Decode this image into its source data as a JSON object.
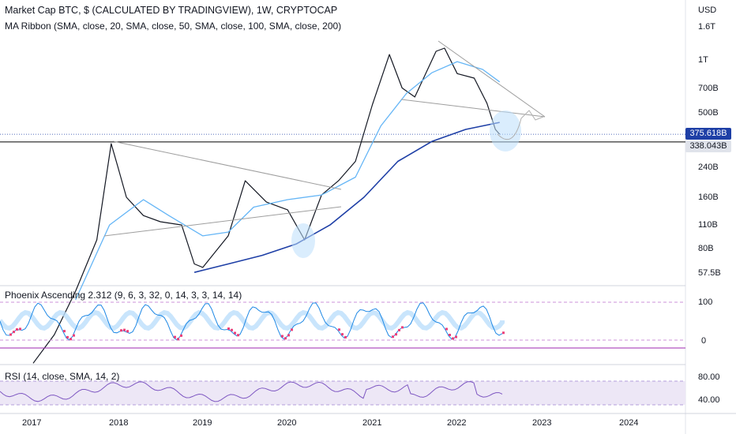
{
  "header": {
    "title": "Market Cap BTC, $ (CALCULATED BY TRADINGVIEW), 1W, CRYPTOCAP",
    "ma_ribbon": "MA Ribbon (SMA, close, 20, SMA, close, 50, SMA, close, 100, SMA, close, 200)"
  },
  "colors": {
    "up": "#26a69a",
    "down": "#000000",
    "ma_fast": "#64b5f6",
    "ma_slow": "#1e3fa6",
    "phoenix_band": "#bbdefb",
    "phoenix_line": "#1e88e5",
    "phoenix_pink": "#ec407a",
    "rsi_line": "#7e57c2",
    "rsi_band": "#ede7f6",
    "last_price_bg": "#1e3fa6",
    "level_bg": "#e0e3eb"
  },
  "chart_data": [
    {
      "type": "line",
      "title": "Market Cap BTC, $ (CALCULATED BY TRADINGVIEW), 1W, CRYPTOCAP",
      "yaxis_unit": "USD",
      "y_scale": "log",
      "y_ticks": [
        "1.6T",
        "1T",
        "700B",
        "500B",
        "240B",
        "160B",
        "110B",
        "80B",
        "57.5B"
      ],
      "x_ticks": [
        "2017",
        "2018",
        "2019",
        "2020",
        "2021",
        "2022",
        "2023",
        "2024"
      ],
      "last_price_label": "375.618B",
      "level_label": "338.043B",
      "series": [
        {
          "x": [
            2017.0,
            2017.25,
            2017.5,
            2017.75,
            2017.92,
            2018.0,
            2018.1,
            2018.3,
            2018.5,
            2018.75,
            2018.9,
            2019.0,
            2019.3,
            2019.5,
            2019.75,
            2020.0,
            2020.2,
            2020.4,
            2020.6,
            2020.8,
            2021.0,
            2021.2,
            2021.35,
            2021.5,
            2021.75,
            2021.85,
            2022.0,
            2022.2,
            2022.35,
            2022.45,
            2022.5
          ],
          "values": [
            17,
            25,
            45,
            90,
            330,
            240,
            160,
            125,
            115,
            110,
            65,
            62,
            95,
            200,
            150,
            135,
            90,
            165,
            200,
            260,
            560,
            1100,
            700,
            620,
            1150,
            1200,
            850,
            800,
            570,
            400,
            375
          ]
        },
        {
          "name": "SMA 50",
          "x": [
            2017.5,
            2017.9,
            2018.3,
            2018.6,
            2019.0,
            2019.3,
            2019.6,
            2020.0,
            2020.4,
            2020.8,
            2021.1,
            2021.4,
            2021.7,
            2022.0,
            2022.3,
            2022.5
          ],
          "values": [
            40,
            110,
            155,
            125,
            95,
            100,
            140,
            155,
            165,
            210,
            420,
            650,
            860,
            1000,
            900,
            760
          ]
        },
        {
          "name": "SMA 200",
          "x": [
            2018.9,
            2019.3,
            2019.7,
            2020.1,
            2020.5,
            2020.9,
            2021.3,
            2021.7,
            2022.1,
            2022.5
          ],
          "values": [
            58,
            65,
            73,
            85,
            110,
            160,
            260,
            340,
            400,
            440
          ]
        }
      ]
    },
    {
      "type": "line",
      "title": "Phoenix Ascending 2.312 (9, 6, 3, 32, 0, 14, 3, 3, 14, 14)",
      "y_ticks": [
        "100",
        "0"
      ]
    },
    {
      "type": "line",
      "title": "RSI (14, close, SMA, 14, 2)",
      "y_ticks": [
        "80.00",
        "40.00"
      ]
    }
  ]
}
